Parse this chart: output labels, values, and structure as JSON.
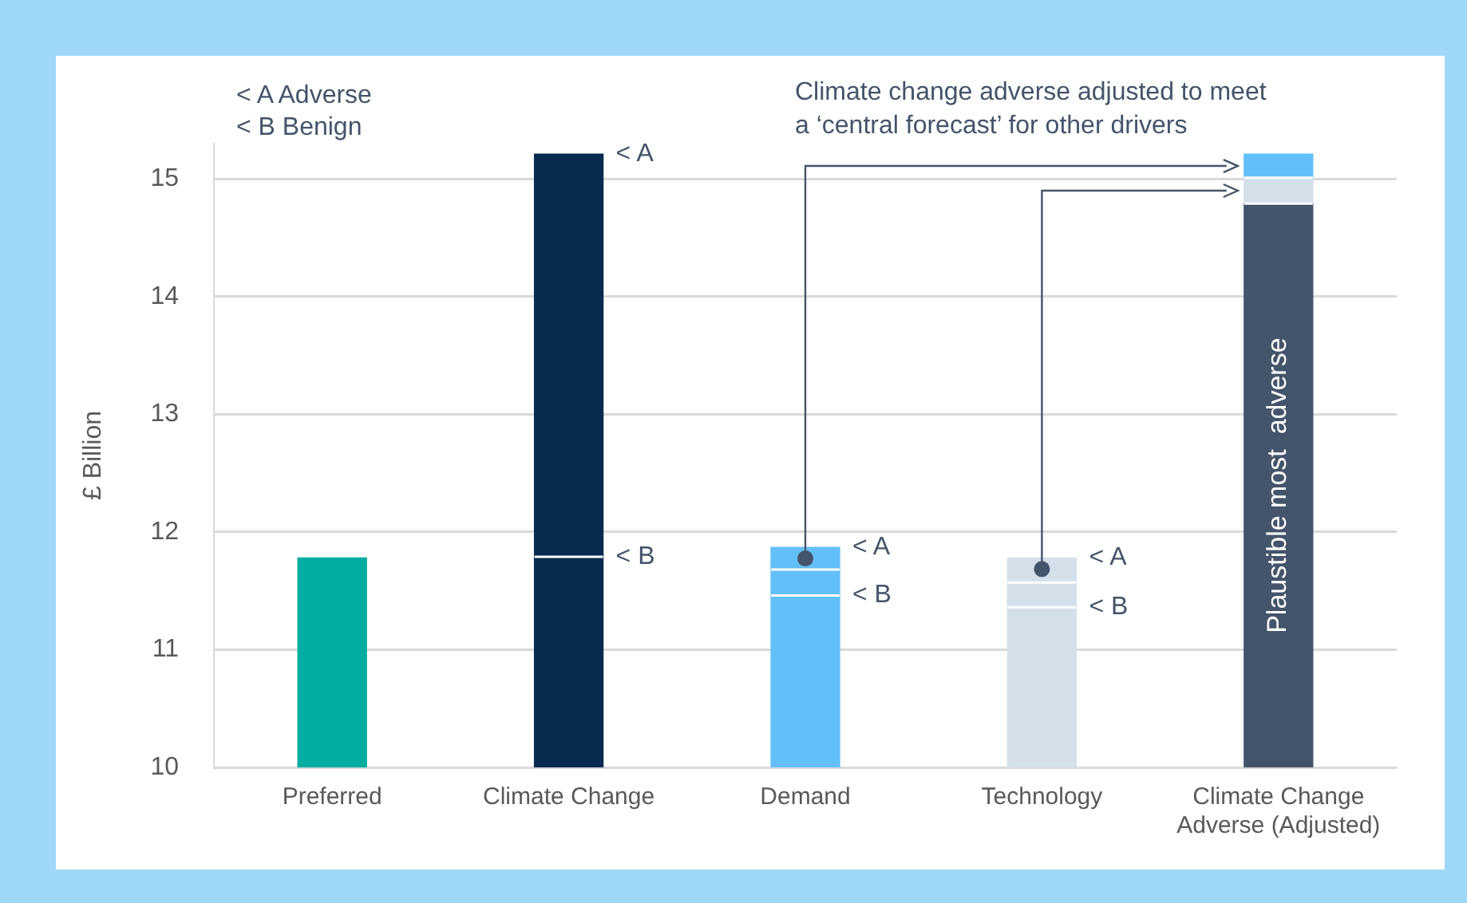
{
  "chart_data": {
    "type": "bar",
    "ylabel": "£ Billion",
    "categories": [
      "Preferred",
      "Climate Change",
      "Demand",
      "Technology",
      "Climate Change Adverse (Adjusted)"
    ],
    "series": [
      {
        "colors": [
          "#00ada0",
          "#072a4f",
          "#63bff8",
          "#d3dfe9",
          "#44546a"
        ],
        "base": [
          10,
          10,
          10,
          10,
          10
        ],
        "values": [
          1.78,
          1.79,
          1.46,
          1.36,
          4.79
        ]
      },
      {
        "colors": [
          "#072a4f",
          "#072a4f",
          "#63bff8",
          "#d3dfe9",
          "#d3dfe9"
        ],
        "base": [
          null,
          11.79,
          11.46,
          11.36,
          14.79
        ],
        "values": [
          null,
          3.42,
          0.22,
          0.21,
          0.22
        ]
      },
      {
        "colors": [
          "#63bff8",
          "#63bff8",
          "#63bff8",
          "#d3dfe9",
          "#63bff8"
        ],
        "base": [
          null,
          null,
          11.68,
          11.57,
          15.01
        ],
        "values": [
          null,
          null,
          0.19,
          0.21,
          0.2
        ]
      }
    ],
    "ylim": [
      10,
      15.3
    ],
    "yticks": [
      10,
      11,
      12,
      13,
      14,
      15
    ],
    "grid": "y",
    "legend": false,
    "annotations": [
      "< A Adverse",
      "< B Benign",
      "Climate change adverse adjusted to meet a ‘central forecast’ for other drivers",
      "Plaustible most  adverse",
      {
        "text": "< A",
        "x": "Climate Change",
        "y": 15.21
      },
      {
        "text": "< B",
        "x": "Climate Change",
        "y": 11.79
      },
      {
        "text": "< A",
        "x": "Demand",
        "y": 11.87
      },
      {
        "text": "< B",
        "x": "Demand",
        "y": 11.46
      },
      {
        "text": "< A",
        "x": "Technology",
        "y": 11.78
      },
      {
        "text": "< B",
        "x": "Technology",
        "y": 11.36
      }
    ]
  }
}
